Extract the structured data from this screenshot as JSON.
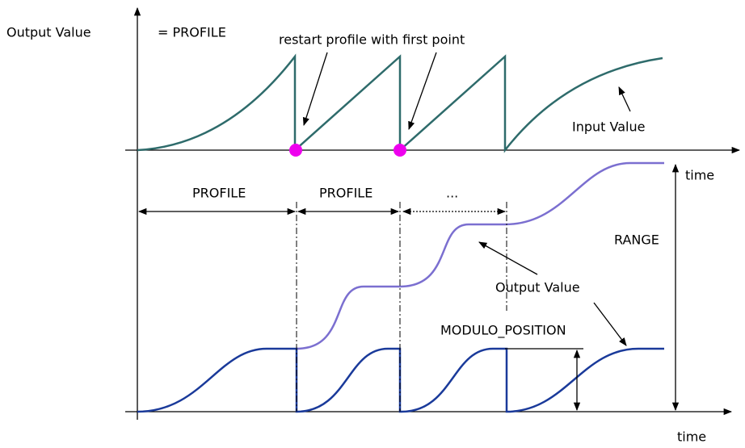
{
  "labels": {
    "y_axis": "Output Value",
    "equals_profile": "= PROFILE",
    "restart_note": "restart profile with first point",
    "input_value": "Input Value",
    "time_upper": "time",
    "profile_1": "PROFILE",
    "profile_2": "PROFILE",
    "ellipsis": "...",
    "range": "RANGE",
    "output_value": "Output Value",
    "modulo_position": "MODULO_POSITION",
    "time_lower": "time"
  }
}
